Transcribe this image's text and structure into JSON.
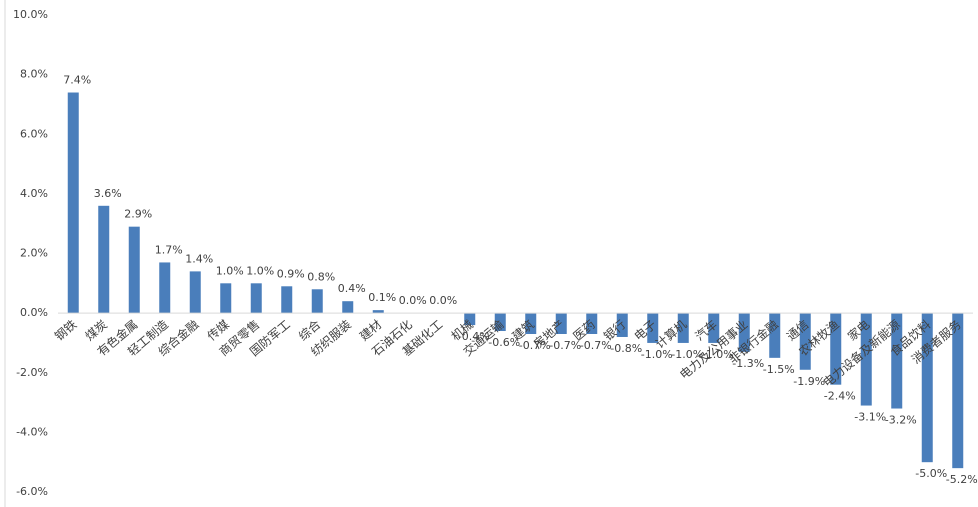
{
  "chart_data": {
    "type": "bar",
    "categories": [
      "钢铁",
      "煤炭",
      "有色金属",
      "轻工制造",
      "综合金融",
      "传媒",
      "商贸零售",
      "国防军工",
      "综合",
      "纺织服装",
      "建材",
      "石油石化",
      "基础化工",
      "机械",
      "交通运输",
      "建筑",
      "房地产",
      "医药",
      "银行",
      "电子",
      "计算机",
      "汽车",
      "电力及公用事业",
      "非银行金融",
      "通信",
      "农林牧渔",
      "家电",
      "电力设备及新能源",
      "食品饮料",
      "消费者服务"
    ],
    "values": [
      7.4,
      3.6,
      2.9,
      1.7,
      1.4,
      1.0,
      1.0,
      0.9,
      0.8,
      0.4,
      0.1,
      0.0,
      0.0,
      -0.4,
      -0.6,
      -0.7,
      -0.7,
      -0.7,
      -0.8,
      -1.0,
      -1.0,
      -1.0,
      -1.3,
      -1.5,
      -1.9,
      -2.4,
      -3.1,
      -3.2,
      -5.0,
      -5.2
    ],
    "value_labels": [
      "7.4%",
      "3.6%",
      "2.9%",
      "1.7%",
      "1.4%",
      "1.0%",
      "1.0%",
      "0.9%",
      "0.8%",
      "0.4%",
      "0.1%",
      "0.0%",
      "0.0%",
      "-0.4%",
      "-0.6%",
      "-0.7%",
      "-0.7%",
      "-0.7%",
      "-0.8%",
      "-1.0%",
      "-1.0%",
      "-1.0%",
      "-1.3%",
      "-1.5%",
      "-1.9%",
      "-2.4%",
      "-3.1%",
      "-3.2%",
      "-5.0%",
      "-5.2%"
    ],
    "color": "#4a7ebb",
    "ylim": [
      -6,
      10
    ],
    "yticks": [
      {
        "value": -6,
        "label": "-6.0%"
      },
      {
        "value": -4,
        "label": "-4.0%"
      },
      {
        "value": -2,
        "label": "-2.0%"
      },
      {
        "value": 0,
        "label": "0.0%"
      },
      {
        "value": 2,
        "label": "2.0%"
      },
      {
        "value": 4,
        "label": "4.0%"
      },
      {
        "value": 6,
        "label": "6.0%"
      },
      {
        "value": 8,
        "label": "8.0%"
      },
      {
        "value": 10,
        "label": "10.0%"
      }
    ],
    "grid": false
  }
}
